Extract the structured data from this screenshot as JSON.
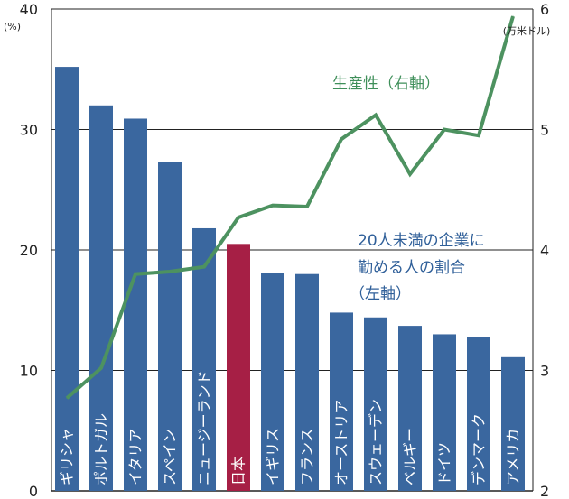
{
  "chart_data": {
    "type": "bar",
    "categories": [
      "ギリシャ",
      "ポルトガル",
      "イタリア",
      "スペイン",
      "ニュージーランド",
      "日本",
      "イギリス",
      "フランス",
      "オーストリア",
      "スウェーデン",
      "ベルギー",
      "ドイツ",
      "デンマーク",
      "アメリカ"
    ],
    "series": [
      {
        "name": "20人未満の企業に勤める人の割合（左軸）",
        "axis": "left",
        "type": "bar",
        "values": [
          35.2,
          32.0,
          30.9,
          27.3,
          21.8,
          20.5,
          18.1,
          18.0,
          14.8,
          14.4,
          13.7,
          13.0,
          12.8,
          11.1
        ],
        "colors": [
          "#3a679f",
          "#3a679f",
          "#3a679f",
          "#3a679f",
          "#3a679f",
          "#a61f45",
          "#3a679f",
          "#3a679f",
          "#3a679f",
          "#3a679f",
          "#3a679f",
          "#3a679f",
          "#3a679f",
          "#3a679f"
        ]
      },
      {
        "name": "生産性（右軸）",
        "axis": "right",
        "type": "line",
        "color": "#4d9260",
        "values": [
          2.77,
          3.02,
          3.8,
          3.82,
          3.86,
          4.27,
          4.37,
          4.36,
          4.92,
          5.12,
          4.63,
          5.0,
          4.95,
          5.94
        ]
      }
    ],
    "left_axis": {
      "unit": "(%)",
      "ylim": [
        0,
        40
      ],
      "ticks": [
        "0",
        "10",
        "20",
        "30",
        "40"
      ]
    },
    "right_axis": {
      "unit": "(万米ドル)",
      "ylim": [
        2,
        6
      ],
      "ticks": [
        "2",
        "3",
        "4",
        "5",
        "6"
      ]
    },
    "annotations": {
      "productivity": "生産性（右軸）",
      "share_line1": "20人未満の企業に",
      "share_line2": "勤める人の割合",
      "share_line3": "（左軸）"
    },
    "grid": true,
    "legend": "none"
  }
}
